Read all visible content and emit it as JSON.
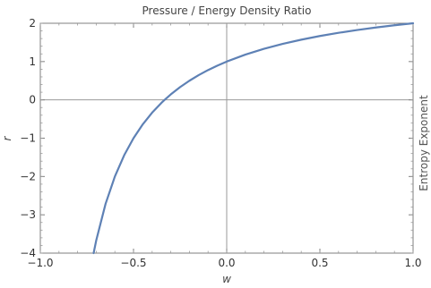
{
  "chart_data": {
    "type": "line",
    "title": "Pressure / Energy Density  Ratio",
    "xlabel": "w",
    "ylabel": "r",
    "right_label": "Entropy Exponent",
    "xlim": [
      -1.0,
      1.0
    ],
    "ylim": [
      -4,
      2
    ],
    "x_ticks": [
      -1.0,
      -0.5,
      0.0,
      0.5,
      1.0
    ],
    "x_tick_labels": [
      "−1.0",
      "−0.5",
      "0.0",
      "0.5",
      "1.0"
    ],
    "y_ticks": [
      -4,
      -3,
      -2,
      -1,
      0,
      1,
      2
    ],
    "y_tick_labels": [
      "−4",
      "−3",
      "−2",
      "−1",
      "0",
      "1",
      "2"
    ],
    "grid": false,
    "reference_lines": {
      "x": 0,
      "y": 0
    },
    "series": [
      {
        "color": "#5e81b5",
        "x": [
          -0.714,
          -0.7,
          -0.65,
          -0.6,
          -0.55,
          -0.5,
          -0.45,
          -0.4,
          -0.35,
          -0.3333,
          -0.3,
          -0.25,
          -0.2,
          -0.15,
          -0.1,
          -0.05,
          0.0,
          0.1,
          0.2,
          0.3,
          0.4,
          0.5,
          0.6,
          0.7,
          0.8,
          0.9,
          1.0
        ],
        "y": [
          -4.0,
          -3.667,
          -2.714,
          -2.0,
          -1.444,
          -1.0,
          -0.636,
          -0.333,
          -0.077,
          0.0,
          0.143,
          0.333,
          0.5,
          0.647,
          0.778,
          0.895,
          1.0,
          1.182,
          1.333,
          1.462,
          1.571,
          1.667,
          1.75,
          1.824,
          1.889,
          1.947,
          2.0
        ]
      }
    ]
  }
}
